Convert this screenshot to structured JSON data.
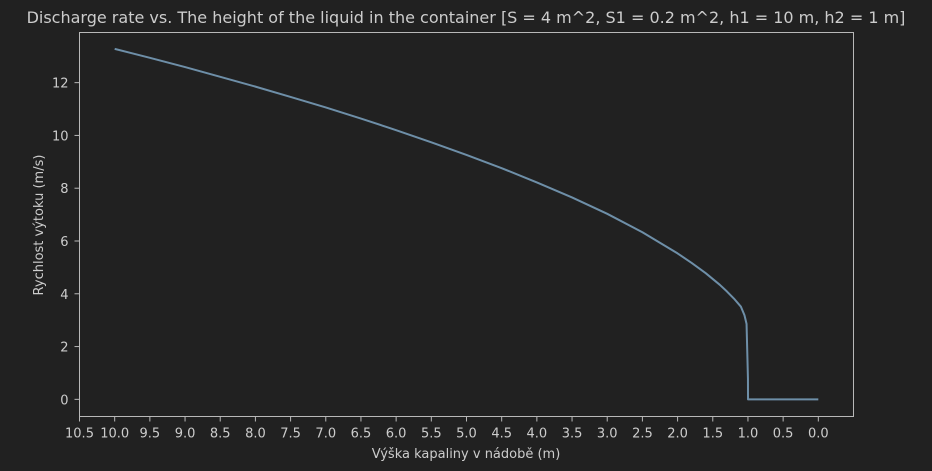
{
  "chart_data": {
    "type": "line",
    "title": "Discharge rate vs. The height of the liquid in the container [S = 4 m^2, S1 = 0.2 m^2, h1 = 10 m, h2 = 1 m]",
    "xlabel": "Výška kapaliny v nádobě (m)",
    "ylabel": "Rychlost výtoku (m/s)",
    "x_inverted": true,
    "xlim": [
      10.5,
      -0.5
    ],
    "ylim": [
      -0.65,
      13.9
    ],
    "xticks": [
      "10.5",
      "10.0",
      "9.5",
      "9.0",
      "8.5",
      "8.0",
      "7.5",
      "7.0",
      "6.5",
      "6.0",
      "5.5",
      "5.0",
      "4.5",
      "4.0",
      "3.5",
      "3.0",
      "2.5",
      "2.0",
      "1.5",
      "1.0",
      "0.5",
      "0.0"
    ],
    "yticks": [
      "0",
      "2",
      "4",
      "6",
      "8",
      "10",
      "12"
    ],
    "grid": false,
    "series": [
      {
        "color": "#6e8fa8",
        "x": [
          10.0,
          9.5,
          9.0,
          8.5,
          8.0,
          7.5,
          7.0,
          6.5,
          6.0,
          5.5,
          5.0,
          4.5,
          4.0,
          3.5,
          3.0,
          2.5,
          2.0,
          1.8,
          1.6,
          1.4,
          1.3,
          1.2,
          1.1,
          1.05,
          1.02,
          1.0,
          0.999,
          0.5,
          0.0
        ],
        "y": [
          13.28,
          12.94,
          12.59,
          12.22,
          11.85,
          11.46,
          11.06,
          10.64,
          10.2,
          9.74,
          9.26,
          8.76,
          8.22,
          7.65,
          7.03,
          6.33,
          5.53,
          5.17,
          4.78,
          4.34,
          4.09,
          3.82,
          3.51,
          3.19,
          2.86,
          0.78,
          0.0,
          0.0,
          0.0
        ]
      }
    ]
  }
}
